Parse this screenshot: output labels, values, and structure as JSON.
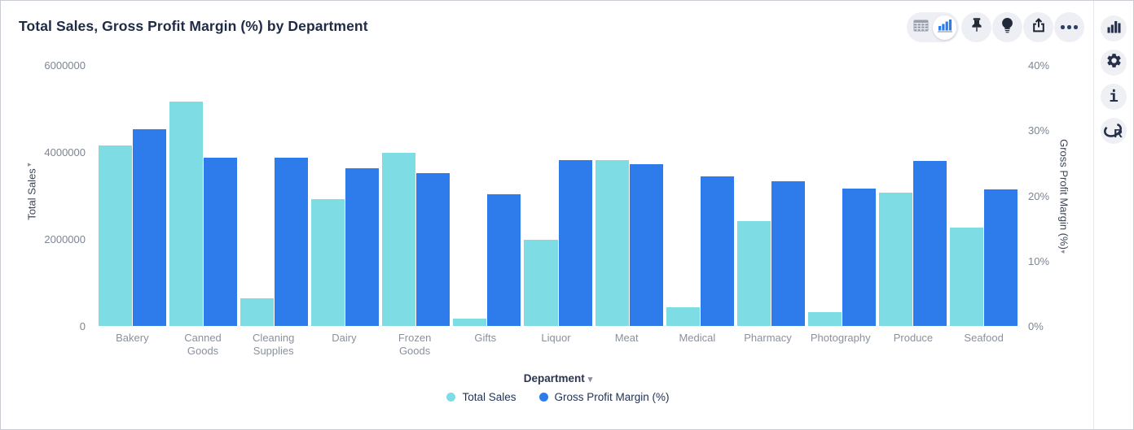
{
  "title": "Total Sales, Gross Profit Margin (%) by Department",
  "toolbar": {
    "view_toggle": {
      "options": [
        "table-view",
        "chart-view"
      ],
      "selected": "chart-view"
    },
    "buttons": [
      "pin",
      "lightbulb",
      "export",
      "more-options"
    ]
  },
  "right_rail": {
    "buttons": [
      "chart-type",
      "settings",
      "info",
      "r-script"
    ]
  },
  "xaxis": {
    "label": "Department"
  },
  "colors": {
    "total_sales": "#7edce5",
    "gross_profit_margin": "#2e7ceb",
    "title_text": "#1f2b45",
    "tick_text": "#7d8593",
    "category_text": "#8a919e",
    "legend_text": "#223355",
    "icon": "#26304a",
    "icon_circle_bg": "#edeff4"
  },
  "chart_data": {
    "type": "bar",
    "title": "Total Sales, Gross Profit Margin (%) by Department",
    "grid": false,
    "legend_position": "bottom",
    "xlabel": "Department",
    "categories": [
      "Bakery",
      "Canned Goods",
      "Cleaning Supplies",
      "Dairy",
      "Frozen Goods",
      "Gifts",
      "Liquor",
      "Meat",
      "Medical",
      "Pharmacy",
      "Photography",
      "Produce",
      "Seafood"
    ],
    "series": [
      {
        "name": "Total Sales",
        "axis": "left",
        "color": "#7edce5",
        "values": [
          4150000,
          5160000,
          640000,
          2920000,
          3980000,
          170000,
          1980000,
          3810000,
          430000,
          2410000,
          320000,
          3070000,
          2260000
        ]
      },
      {
        "name": "Gross Profit Margin (%)",
        "axis": "right",
        "color": "#2e7ceb",
        "values": [
          30.2,
          25.8,
          25.8,
          24.2,
          23.4,
          20.2,
          25.4,
          24.8,
          22.9,
          22.2,
          21.1,
          25.3,
          20.9
        ]
      }
    ],
    "left_axis": {
      "label": "Total Sales",
      "max": 6000000,
      "min": 0,
      "ticks_top_to_bottom": [
        "6000000",
        "4000000",
        "2000000",
        "0"
      ]
    },
    "right_axis": {
      "label": "Gross Profit Margin (%)",
      "max": 40,
      "min": 0,
      "ticks_top_to_bottom": [
        "40%",
        "30%",
        "20%",
        "10%",
        "0%"
      ]
    }
  }
}
